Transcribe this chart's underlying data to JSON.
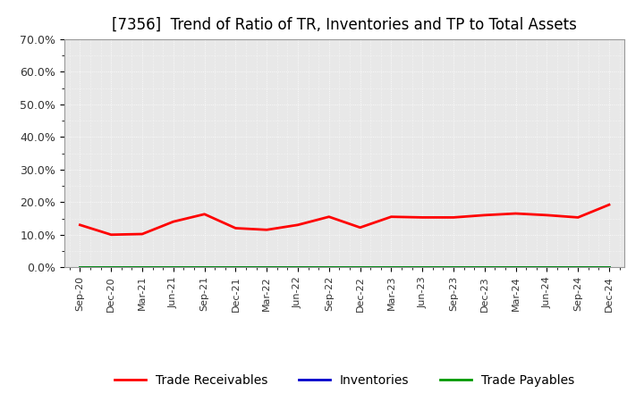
{
  "title": "[7356]  Trend of Ratio of TR, Inventories and TP to Total Assets",
  "x_labels": [
    "Sep-20",
    "Dec-20",
    "Mar-21",
    "Jun-21",
    "Sep-21",
    "Dec-21",
    "Mar-22",
    "Jun-22",
    "Sep-22",
    "Dec-22",
    "Mar-23",
    "Jun-23",
    "Sep-23",
    "Dec-23",
    "Mar-24",
    "Jun-24",
    "Sep-24",
    "Dec-24"
  ],
  "trade_receivables": [
    0.13,
    0.1,
    0.102,
    0.14,
    0.163,
    0.12,
    0.115,
    0.13,
    0.155,
    0.122,
    0.155,
    0.153,
    0.153,
    0.16,
    0.165,
    0.16,
    0.153,
    0.192
  ],
  "inventories": [
    0.0,
    0.0,
    0.0,
    0.0,
    0.0,
    0.0,
    0.0,
    0.0,
    0.0,
    0.0,
    0.0,
    0.0,
    0.0,
    0.0,
    0.0,
    0.0,
    0.0,
    0.0
  ],
  "trade_payables": [
    0.0,
    0.0,
    0.0,
    0.0,
    0.0,
    0.0,
    0.0,
    0.0,
    0.0,
    0.0,
    0.0,
    0.0,
    0.0,
    0.0,
    0.0,
    0.0,
    0.0,
    0.0
  ],
  "tr_color": "#ff0000",
  "inv_color": "#0000cc",
  "tp_color": "#009900",
  "ylim": [
    0.0,
    0.7
  ],
  "yticks": [
    0.0,
    0.1,
    0.2,
    0.3,
    0.4,
    0.5,
    0.6,
    0.7
  ],
  "ytick_labels": [
    "0.0%",
    "10.0%",
    "20.0%",
    "30.0%",
    "40.0%",
    "50.0%",
    "60.0%",
    "70.0%"
  ],
  "background_color": "#ffffff",
  "plot_bg_color": "#e8e8e8",
  "grid_color": "#ffffff",
  "title_fontsize": 12,
  "legend_labels": [
    "Trade Receivables",
    "Inventories",
    "Trade Payables"
  ]
}
